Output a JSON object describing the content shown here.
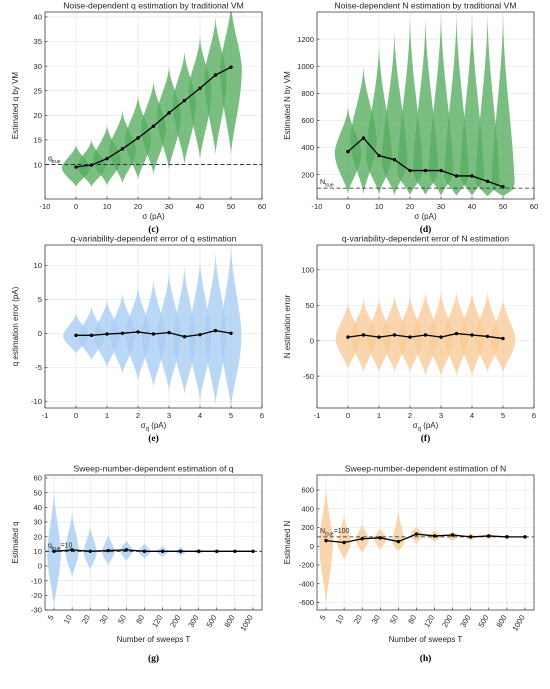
{
  "chart_data": [
    {
      "panel": "(c)",
      "type": "violin",
      "title": "Noise-dependent q estimation by traditional VM",
      "xlabel": "σ (pA)",
      "ylabel": "Estimated q by VM",
      "xlim": [
        -10,
        60
      ],
      "ylim": [
        3,
        41
      ],
      "xticks": [
        "-10",
        "0",
        "10",
        "20",
        "30",
        "40",
        "50",
        "60"
      ],
      "yticks": [
        "10",
        "15",
        "20",
        "25",
        "30",
        "35",
        "40"
      ],
      "violin_color": "#5aae61",
      "reference": {
        "value": 10,
        "label_main": "q",
        "label_sub": "true"
      },
      "series": [
        {
          "x": [
            0,
            5,
            10,
            15,
            20,
            25,
            30,
            35,
            40,
            45,
            50
          ],
          "y": [
            9.5,
            9.9,
            11.2,
            13.2,
            15.4,
            17.8,
            20.5,
            23.0,
            25.5,
            28.2,
            29.8
          ],
          "lo": [
            5.5,
            5.5,
            5.8,
            6.2,
            7,
            8,
            9,
            10,
            11,
            12,
            12
          ],
          "hi": [
            14,
            15,
            18,
            21,
            24,
            27,
            30,
            33,
            36,
            40,
            43
          ],
          "w": [
            4.6,
            4.6,
            4.5,
            4.4,
            4.2,
            4.0,
            3.9,
            3.8,
            3.7,
            3.6,
            3.5
          ]
        }
      ]
    },
    {
      "panel": "(d)",
      "type": "violin",
      "title": "Noise-dependent N estimation by traditional VM",
      "xlabel": "σ (pA)",
      "ylabel": "Estimated N by VM",
      "xlim": [
        -10,
        60
      ],
      "ylim": [
        20,
        1400
      ],
      "xticks": [
        "-10",
        "0",
        "10",
        "20",
        "30",
        "40",
        "50",
        "60"
      ],
      "yticks": [
        "200",
        "400",
        "600",
        "800",
        "1000",
        "1200"
      ],
      "violin_color": "#5aae61",
      "reference": {
        "value": 100,
        "label_main": "N",
        "label_sub": "true"
      },
      "series": [
        {
          "x": [
            0,
            5,
            10,
            15,
            20,
            25,
            30,
            35,
            40,
            45,
            50
          ],
          "y": [
            370,
            470,
            340,
            310,
            230,
            230,
            230,
            190,
            190,
            150,
            110
          ],
          "lo": [
            60,
            55,
            55,
            50,
            50,
            50,
            45,
            45,
            45,
            40,
            40
          ],
          "hi": [
            700,
            1000,
            1150,
            1250,
            1350,
            1350,
            1380,
            1380,
            1380,
            1380,
            1380
          ],
          "w": [
            4.3,
            4.3,
            4.2,
            4.2,
            4.1,
            4.1,
            4.0,
            4.0,
            3.9,
            3.9,
            3.8
          ]
        }
      ]
    },
    {
      "panel": "(e)",
      "type": "violin",
      "title": "q-variability-dependent error of q estimation",
      "xlabel_main": "σ",
      "xlabel_sub": "q",
      "xlabel_unit": " (pA)",
      "ylabel": "q estimation error (pA)",
      "xlim": [
        -1,
        6
      ],
      "ylim": [
        -11,
        13
      ],
      "xticks": [
        "-1",
        "0",
        "1",
        "2",
        "3",
        "4",
        "5",
        "6"
      ],
      "yticks": [
        "-10",
        "-5",
        "0",
        "5",
        "10"
      ],
      "violin_color": "#a9cef3",
      "series": [
        {
          "x": [
            0,
            0.5,
            1,
            1.5,
            2,
            2.5,
            3,
            3.5,
            4,
            4.5,
            5
          ],
          "y": [
            -0.3,
            -0.3,
            -0.1,
            0.0,
            0.2,
            -0.1,
            0.1,
            -0.5,
            -0.2,
            0.4,
            0.0
          ],
          "lo": [
            -3,
            -4,
            -5,
            -6,
            -7,
            -8,
            -8.5,
            -9,
            -10,
            -10.5,
            -11
          ],
          "hi": [
            3,
            4,
            5,
            6,
            7,
            8,
            9,
            10,
            11,
            12,
            13
          ],
          "w": [
            0.42,
            0.42,
            0.42,
            0.41,
            0.4,
            0.39,
            0.38,
            0.37,
            0.36,
            0.35,
            0.34
          ]
        }
      ]
    },
    {
      "panel": "(f)",
      "type": "violin",
      "title": "q-variability-dependent error of N estimation",
      "xlabel_main": "σ",
      "xlabel_sub": "q",
      "xlabel_unit": " (pA)",
      "ylabel": "N estimation error",
      "xlim": [
        -1,
        6
      ],
      "ylim": [
        -95,
        135
      ],
      "xticks": [
        "-1",
        "0",
        "1",
        "2",
        "3",
        "4",
        "5",
        "6"
      ],
      "yticks": [
        "-50",
        "0",
        "50",
        "100"
      ],
      "violin_color": "#f8cc98",
      "series": [
        {
          "x": [
            0,
            0.5,
            1,
            1.5,
            2,
            2.5,
            3,
            3.5,
            4,
            4.5,
            5
          ],
          "y": [
            5,
            8,
            5,
            8,
            5,
            8,
            5,
            10,
            8,
            6,
            3
          ],
          "lo": [
            -40,
            -45,
            -45,
            -45,
            -45,
            -50,
            -50,
            -50,
            -50,
            -45,
            -45
          ],
          "hi": [
            55,
            60,
            60,
            65,
            65,
            70,
            70,
            70,
            70,
            70,
            60
          ],
          "w": [
            0.4,
            0.4,
            0.4,
            0.4,
            0.4,
            0.4,
            0.4,
            0.4,
            0.4,
            0.4,
            0.4
          ]
        }
      ]
    },
    {
      "panel": "(g)",
      "type": "violin",
      "title": "Sweep-number-dependent estimation of q",
      "xlabel": "Number of sweeps T",
      "ylabel": "Estimated q",
      "categorical": true,
      "categories": [
        "5",
        "10",
        "20",
        "30",
        "50",
        "80",
        "120",
        "200",
        "300",
        "500",
        "800",
        "1000"
      ],
      "ylim": [
        -30,
        62
      ],
      "yticks": [
        "-30",
        "-20",
        "-10",
        "0",
        "10",
        "20",
        "30",
        "40",
        "50",
        "60"
      ],
      "violin_color": "#a9cef3",
      "reference": {
        "value": 10,
        "label_main": "q",
        "label_sub": "true",
        "label_suffix": "=10"
      },
      "series": [
        {
          "y": [
            10,
            11,
            10,
            10.5,
            11,
            10,
            10,
            10,
            10,
            10,
            10,
            10
          ],
          "lo": [
            -28,
            -8,
            -3,
            0,
            3,
            5,
            6,
            7,
            8,
            8.5,
            9,
            9.2
          ],
          "hi": [
            52,
            38,
            28,
            22,
            18,
            16,
            14,
            13,
            12,
            11.5,
            11,
            10.8
          ],
          "w": [
            0.38,
            0.37,
            0.36,
            0.35,
            0.34,
            0.33,
            0.32,
            0.3,
            0.28,
            0.26,
            0.24,
            0.22
          ]
        }
      ]
    },
    {
      "panel": "(h)",
      "type": "violin",
      "title": "Sweep-number-dependent estimation of N",
      "xlabel": "Number of sweeps T",
      "ylabel": "Estimated N",
      "categorical": true,
      "categories": [
        "5",
        "10",
        "20",
        "30",
        "50",
        "80",
        "120",
        "200",
        "300",
        "500",
        "800",
        "1000"
      ],
      "ylim": [
        -680,
        760
      ],
      "yticks": [
        "-600",
        "-400",
        "-200",
        "0",
        "200",
        "400",
        "600"
      ],
      "violin_color": "#f8cc98",
      "reference": {
        "value": 100,
        "label_main": "N",
        "label_sub": "true",
        "label_suffix": "=100"
      },
      "series": [
        {
          "y": [
            60,
            40,
            80,
            90,
            50,
            130,
            110,
            120,
            100,
            110,
            100,
            100
          ],
          "lo": [
            -620,
            -150,
            -80,
            -40,
            -60,
            20,
            40,
            50,
            60,
            70,
            80,
            85
          ],
          "hi": [
            650,
            350,
            250,
            200,
            400,
            220,
            180,
            160,
            150,
            140,
            130,
            120
          ],
          "w": [
            0.38,
            0.37,
            0.36,
            0.35,
            0.34,
            0.33,
            0.32,
            0.3,
            0.28,
            0.26,
            0.24,
            0.22
          ]
        }
      ]
    }
  ]
}
